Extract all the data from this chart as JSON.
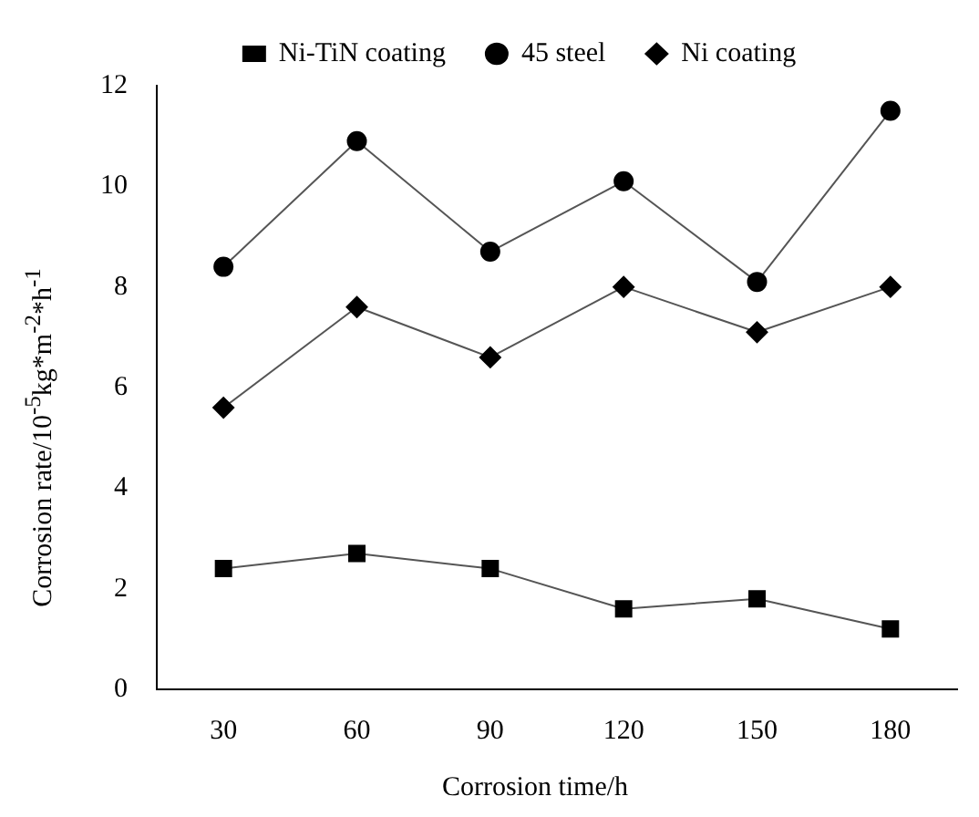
{
  "chart_data": {
    "type": "line",
    "xlabel": "Corrosion time/h",
    "ylabel": "Corrosion rate/10$^{-5}$kg*m$^{-2}$*h$^{-1}$",
    "categories": [
      "30",
      "60",
      "90",
      "120",
      "150",
      "180"
    ],
    "ylim": [
      0,
      12
    ],
    "yticks": [
      0,
      2,
      4,
      6,
      8,
      10,
      12
    ],
    "grid": false,
    "legend": "top",
    "series": [
      {
        "name": "Ni-TiN coating",
        "color": "#000000",
        "marker": "square",
        "values": [
          2.4,
          2.7,
          2.4,
          1.6,
          1.8,
          1.2
        ]
      },
      {
        "name": "45 steel",
        "color": "#000000",
        "marker": "circle",
        "values": [
          8.4,
          10.9,
          8.7,
          10.1,
          8.1,
          11.5
        ]
      },
      {
        "name": "Ni coating",
        "color": "#000000",
        "marker": "diamond",
        "values": [
          5.6,
          7.6,
          6.6,
          8.0,
          7.1,
          8.0
        ]
      }
    ]
  }
}
